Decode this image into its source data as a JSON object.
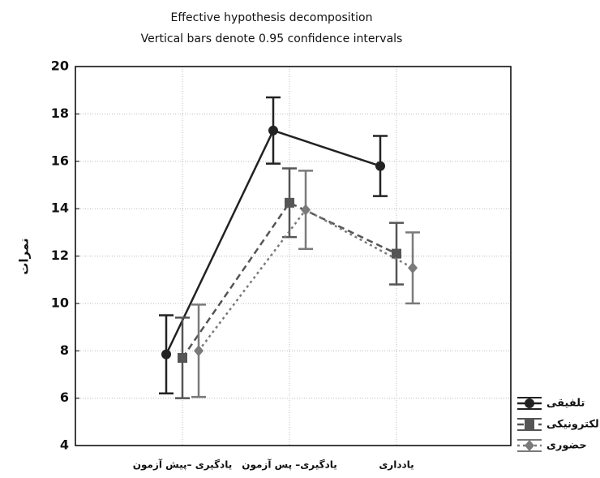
{
  "chart_data": {
    "type": "line",
    "title": "Effective hypothesis decomposition",
    "subtitle": "Vertical bars denote 0.95 confidence intervals",
    "y_label": "نمرات",
    "categories": [
      "یادگیری –پیش آزمون",
      "یادگیری– پس آزمون",
      "یادداری"
    ],
    "series": [
      {
        "name": "تلفیقی",
        "color": "#222222",
        "dash": "solid",
        "marker": "circle",
        "values": [
          7.85,
          17.3,
          15.8
        ],
        "errors": [
          1.65,
          1.4,
          1.27
        ]
      },
      {
        "name": "الکترونیکی",
        "color": "#555555",
        "dash": "dashed",
        "marker": "square",
        "values": [
          7.7,
          14.25,
          12.1
        ],
        "errors": [
          1.7,
          1.45,
          1.3
        ]
      },
      {
        "name": "حضوری",
        "color": "#7a7a7a",
        "dash": "dotted",
        "marker": "diamond",
        "values": [
          8.0,
          13.95,
          11.5
        ],
        "errors": [
          1.95,
          1.65,
          1.5
        ]
      }
    ],
    "ylim": [
      4,
      20
    ],
    "yticks": [
      4,
      6,
      8,
      10,
      12,
      14,
      16,
      18,
      20
    ],
    "grid": true,
    "legend": "bottom-right"
  }
}
